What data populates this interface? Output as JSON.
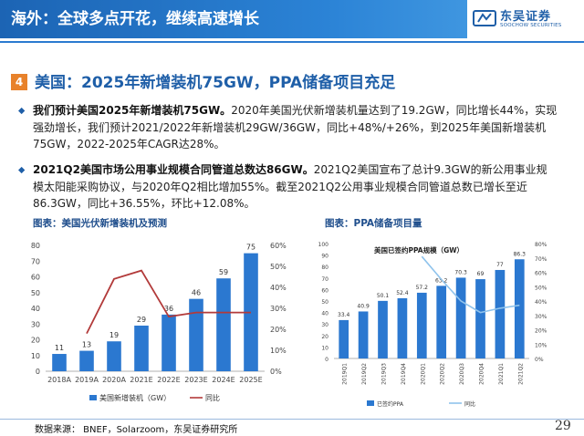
{
  "header": {
    "title": "海外：全球多点开花，继续高速增长",
    "logo_name": "东吴证券",
    "logo_sub": "SOOCHOW SECURITIES"
  },
  "section": {
    "number": "4",
    "title": "美国：2025年新增装机75GW，PPA储备项目充足"
  },
  "bullets": [
    {
      "icon": "diamond-bullet-icon",
      "bold": "我们预计美国2025年新增装机75GW。",
      "text": "2020年美国光伏新增装机量达到了19.2GW，同比增长44%，实现强劲增长，我们预计2021/2022年新增装机29GW/36GW，同比+48%/+26%，到2025年美国新增装机75GW，2022-2025年CAGR达28%。"
    },
    {
      "icon": "diamond-bullet-icon",
      "bold": "2021Q2美国市场公用事业规模合同管道总数达86GW。",
      "text": "2021Q2美国宣布了总计9.3GW的新公用事业规模太阳能采购协议，与2020年Q2相比增加55%。截至2021Q2公用事业规模合同管道总数已增长至近86.3GW，同比+36.55%，环比+12.08%。"
    }
  ],
  "footer": {
    "source": "数据来源： BNEF，Solarzoom，东吴证券研究所",
    "page": "29"
  },
  "colors": {
    "accent": "#1f5fa8",
    "bar": "#2b78d0",
    "line1": "#b23a3a",
    "line2": "#8fc3ec",
    "orange": "#e8822b"
  },
  "chart_data": [
    {
      "type": "bar",
      "title": "图表：美国光伏新增装机及预测",
      "categories": [
        "2018A",
        "2019A",
        "2020A",
        "2021E",
        "2022E",
        "2023E",
        "2024E",
        "2025E"
      ],
      "series": [
        {
          "name": "美国新增装机（GW）",
          "type": "bar",
          "axis": "left",
          "values": [
            11,
            13,
            19,
            29,
            36,
            46,
            59,
            75
          ]
        },
        {
          "name": "同比",
          "type": "line",
          "axis": "right",
          "values": [
            null,
            18,
            44,
            48,
            26,
            28,
            28,
            28
          ]
        }
      ],
      "ylim": [
        0,
        80
      ],
      "yticks": [
        "0",
        "10",
        "20",
        "30",
        "40",
        "50",
        "60",
        "70",
        "80"
      ],
      "y2lim": [
        0,
        60
      ],
      "y2ticks": [
        "0%",
        "10%",
        "20%",
        "30%",
        "40%",
        "50%",
        "60%"
      ],
      "legend": [
        "美国新增装机（GW）",
        "同比"
      ],
      "legend_position": "bottom"
    },
    {
      "type": "bar",
      "title": "图表：PPA储备项目量",
      "inner_title": "美国已签约PPA规模（GW）",
      "categories": [
        "2019Q1",
        "2019Q2",
        "2019Q3",
        "2019Q4",
        "2020Q1",
        "2020Q2",
        "2020Q3",
        "2020Q4",
        "2021Q1",
        "2021Q2"
      ],
      "series": [
        {
          "name": "已签约PPA",
          "type": "bar",
          "axis": "left",
          "values": [
            33.4,
            40.9,
            50.1,
            52.4,
            57.2,
            63.2,
            70.3,
            69,
            77,
            86.3
          ]
        },
        {
          "name": "同比",
          "type": "line",
          "axis": "right",
          "values": [
            null,
            null,
            null,
            null,
            71,
            55,
            40,
            32,
            35,
            37
          ]
        }
      ],
      "ylim": [
        0,
        100
      ],
      "yticks": [
        "0",
        "10",
        "20",
        "30",
        "40",
        "50",
        "60",
        "70",
        "80",
        "90",
        "100"
      ],
      "y2lim": [
        0,
        80
      ],
      "y2ticks": [
        "0%",
        "10%",
        "20%",
        "30%",
        "40%",
        "50%",
        "60%",
        "70%",
        "80%"
      ],
      "legend": [
        "已签约PPA",
        "同比"
      ],
      "legend_position": "bottom"
    }
  ]
}
